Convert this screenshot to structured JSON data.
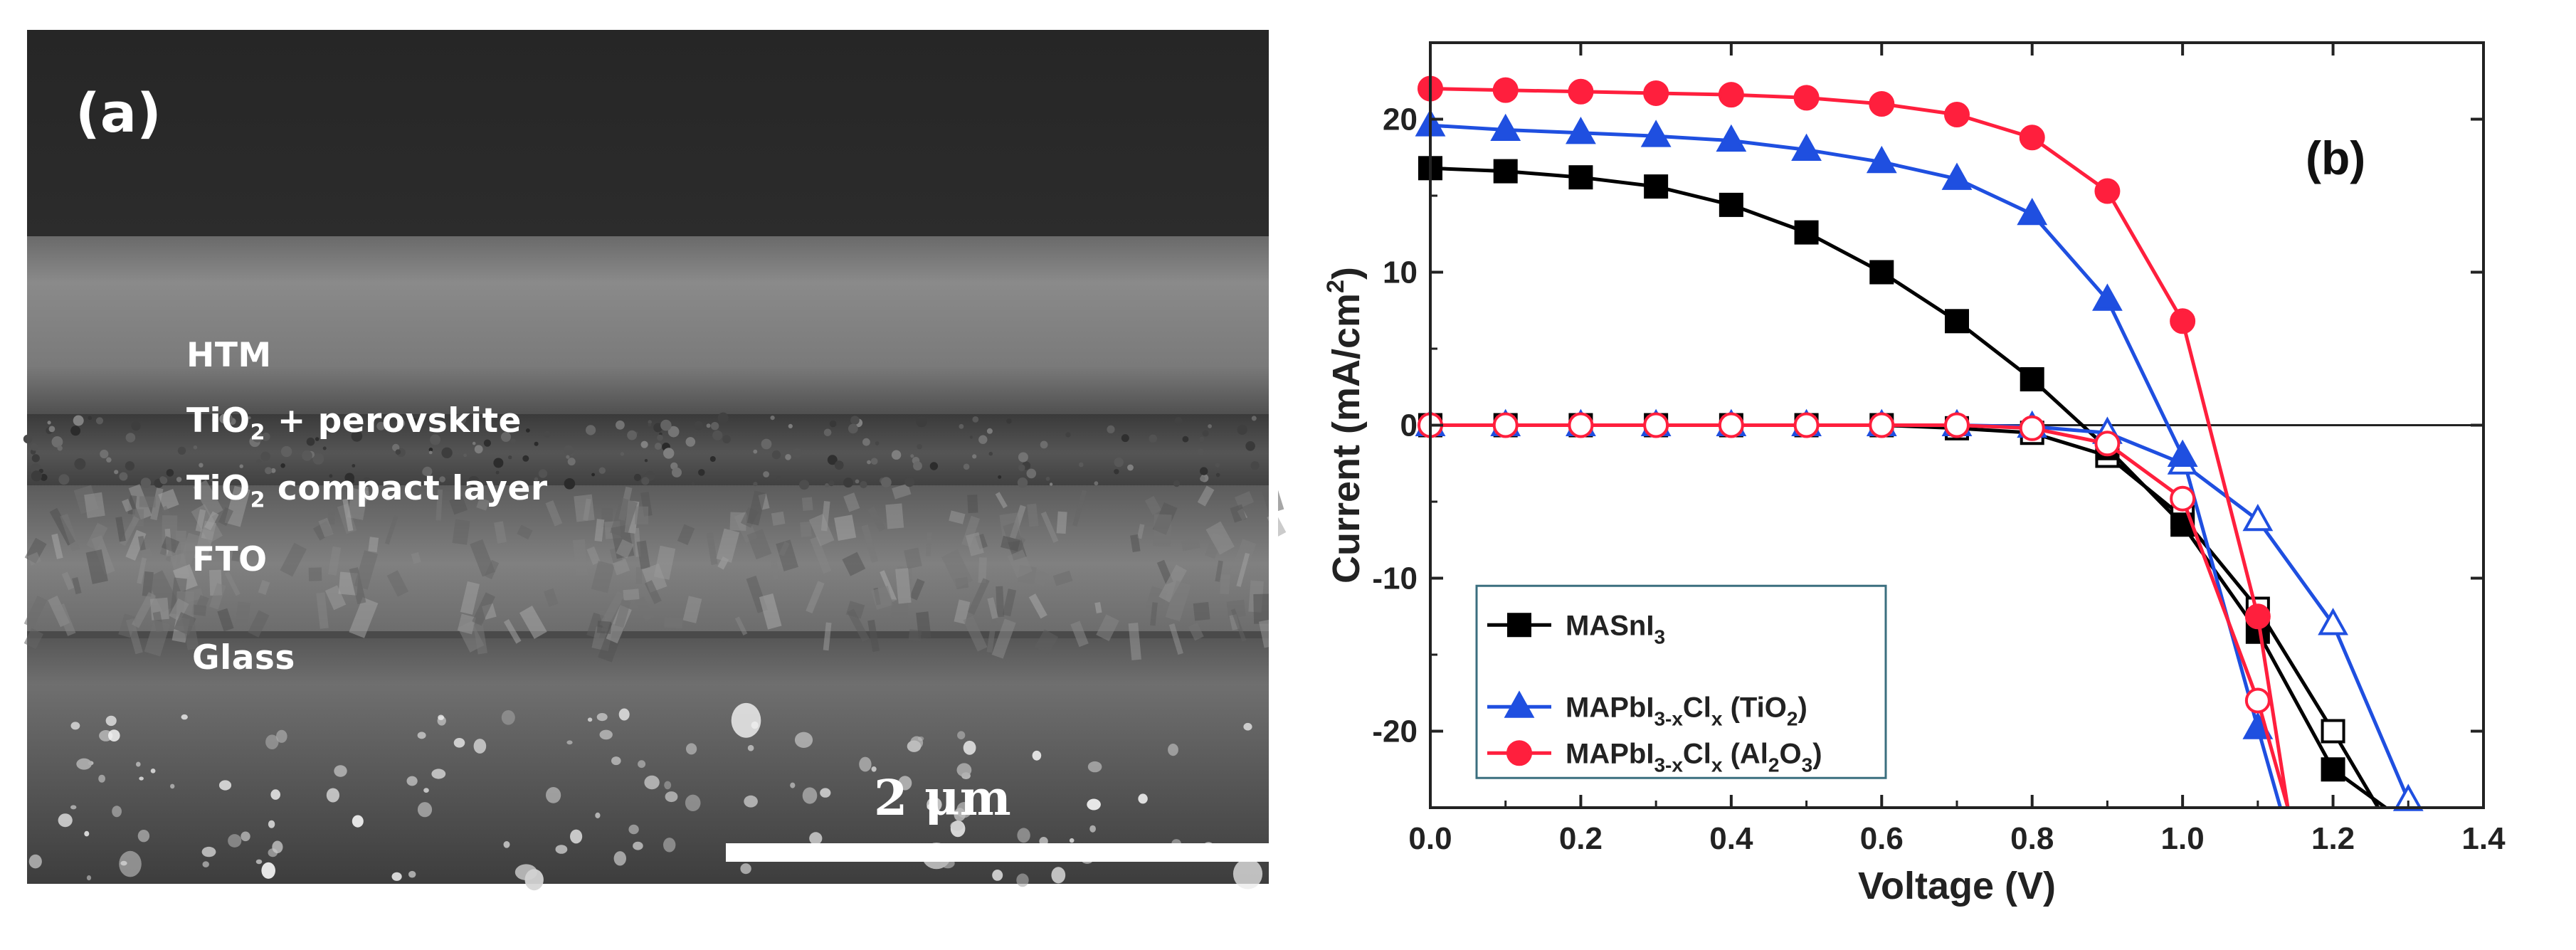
{
  "panel_a": {
    "tag": "(a)",
    "layers": [
      {
        "name": "HTM",
        "sub": "",
        "rest": ""
      },
      {
        "name": "TiO",
        "sub": "2",
        "rest": " + perovskite"
      },
      {
        "name": "TiO",
        "sub": "2",
        "rest": " compact  layer"
      },
      {
        "name": "FTO",
        "sub": "",
        "rest": ""
      },
      {
        "name": "Glass",
        "sub": "",
        "rest": ""
      }
    ],
    "scale_bar_label": "2 μm"
  },
  "chart_data": {
    "type": "line",
    "panel_tag": "(b)",
    "xlabel": "Voltage (V)",
    "ylabel": {
      "main": "Current (mA/cm",
      "sup": "2",
      "end": ")"
    },
    "xlim": [
      0.0,
      1.4
    ],
    "ylim": [
      -25,
      25
    ],
    "xticks": [
      "0.0",
      "0.2",
      "0.4",
      "0.6",
      "0.8",
      "1.0",
      "1.2",
      "1.4"
    ],
    "yticks": [
      "20",
      "10",
      "0",
      "-10",
      "-20"
    ],
    "zero_line": true,
    "legend_position": "bottom-left",
    "series": [
      {
        "name": {
          "main": "MASnI",
          "sub": "3",
          "mid": "",
          "sub2": "",
          "end": ""
        },
        "color": "#000000",
        "marker": "square",
        "light": {
          "x": [
            0,
            0.1,
            0.2,
            0.3,
            0.4,
            0.5,
            0.6,
            0.7,
            0.8,
            0.9,
            1.0,
            1.1,
            1.2,
            1.27
          ],
          "y": [
            16.8,
            16.6,
            16.2,
            15.6,
            14.4,
            12.6,
            10.0,
            6.8,
            3.0,
            -1.5,
            -6.5,
            -13.5,
            -22.5,
            -25
          ]
        },
        "dark": {
          "x": [
            0,
            0.1,
            0.2,
            0.3,
            0.4,
            0.5,
            0.6,
            0.7,
            0.8,
            0.9,
            1.0,
            1.1,
            1.2,
            1.26
          ],
          "y": [
            0,
            0,
            0,
            0,
            0,
            0,
            0,
            -0.2,
            -0.5,
            -2.0,
            -6.0,
            -12.0,
            -20.0,
            -25
          ]
        }
      },
      {
        "name": {
          "main": "MAPbI",
          "sub": "3-x",
          "mid": "Cl",
          "sub2": "x",
          "end": "  (TiO",
          "sub3": "2",
          "end2": ")"
        },
        "color": "#1f4fe0",
        "marker": "triangle",
        "light": {
          "x": [
            0,
            0.1,
            0.2,
            0.3,
            0.4,
            0.5,
            0.6,
            0.7,
            0.8,
            0.9,
            1.0,
            1.1,
            1.13
          ],
          "y": [
            19.6,
            19.3,
            19.1,
            18.9,
            18.6,
            18.0,
            17.2,
            16.1,
            13.8,
            8.2,
            -2.0,
            -19.8,
            -25
          ]
        },
        "dark": {
          "x": [
            0,
            0.1,
            0.2,
            0.3,
            0.4,
            0.5,
            0.6,
            0.7,
            0.8,
            0.9,
            1.0,
            1.1,
            1.2,
            1.3,
            1.31
          ],
          "y": [
            0,
            0,
            0,
            0,
            0,
            0,
            0,
            0,
            -0.1,
            -0.5,
            -2.5,
            -6.2,
            -13.0,
            -24.5,
            -25
          ]
        }
      },
      {
        "name": {
          "main": "MAPbI",
          "sub": "3-x",
          "mid": "Cl",
          "sub2": "x",
          "end": " (Al",
          "sub3": "2",
          "end2": "O",
          "sub4": "3",
          "end3": ")"
        },
        "color": "#ff1f3d",
        "marker": "circle",
        "light": {
          "x": [
            0,
            0.1,
            0.2,
            0.3,
            0.4,
            0.5,
            0.6,
            0.7,
            0.8,
            0.9,
            1.0,
            1.1,
            1.14
          ],
          "y": [
            22.0,
            21.9,
            21.8,
            21.7,
            21.6,
            21.4,
            21.0,
            20.3,
            18.8,
            15.3,
            6.8,
            -12.5,
            -25
          ]
        },
        "dark": {
          "x": [
            0,
            0.1,
            0.2,
            0.3,
            0.4,
            0.5,
            0.6,
            0.7,
            0.8,
            0.9,
            1.0,
            1.1,
            1.14
          ],
          "y": [
            0,
            0,
            0,
            0,
            0,
            0,
            0,
            0,
            -0.2,
            -1.2,
            -4.8,
            -18.0,
            -25
          ]
        }
      }
    ]
  }
}
